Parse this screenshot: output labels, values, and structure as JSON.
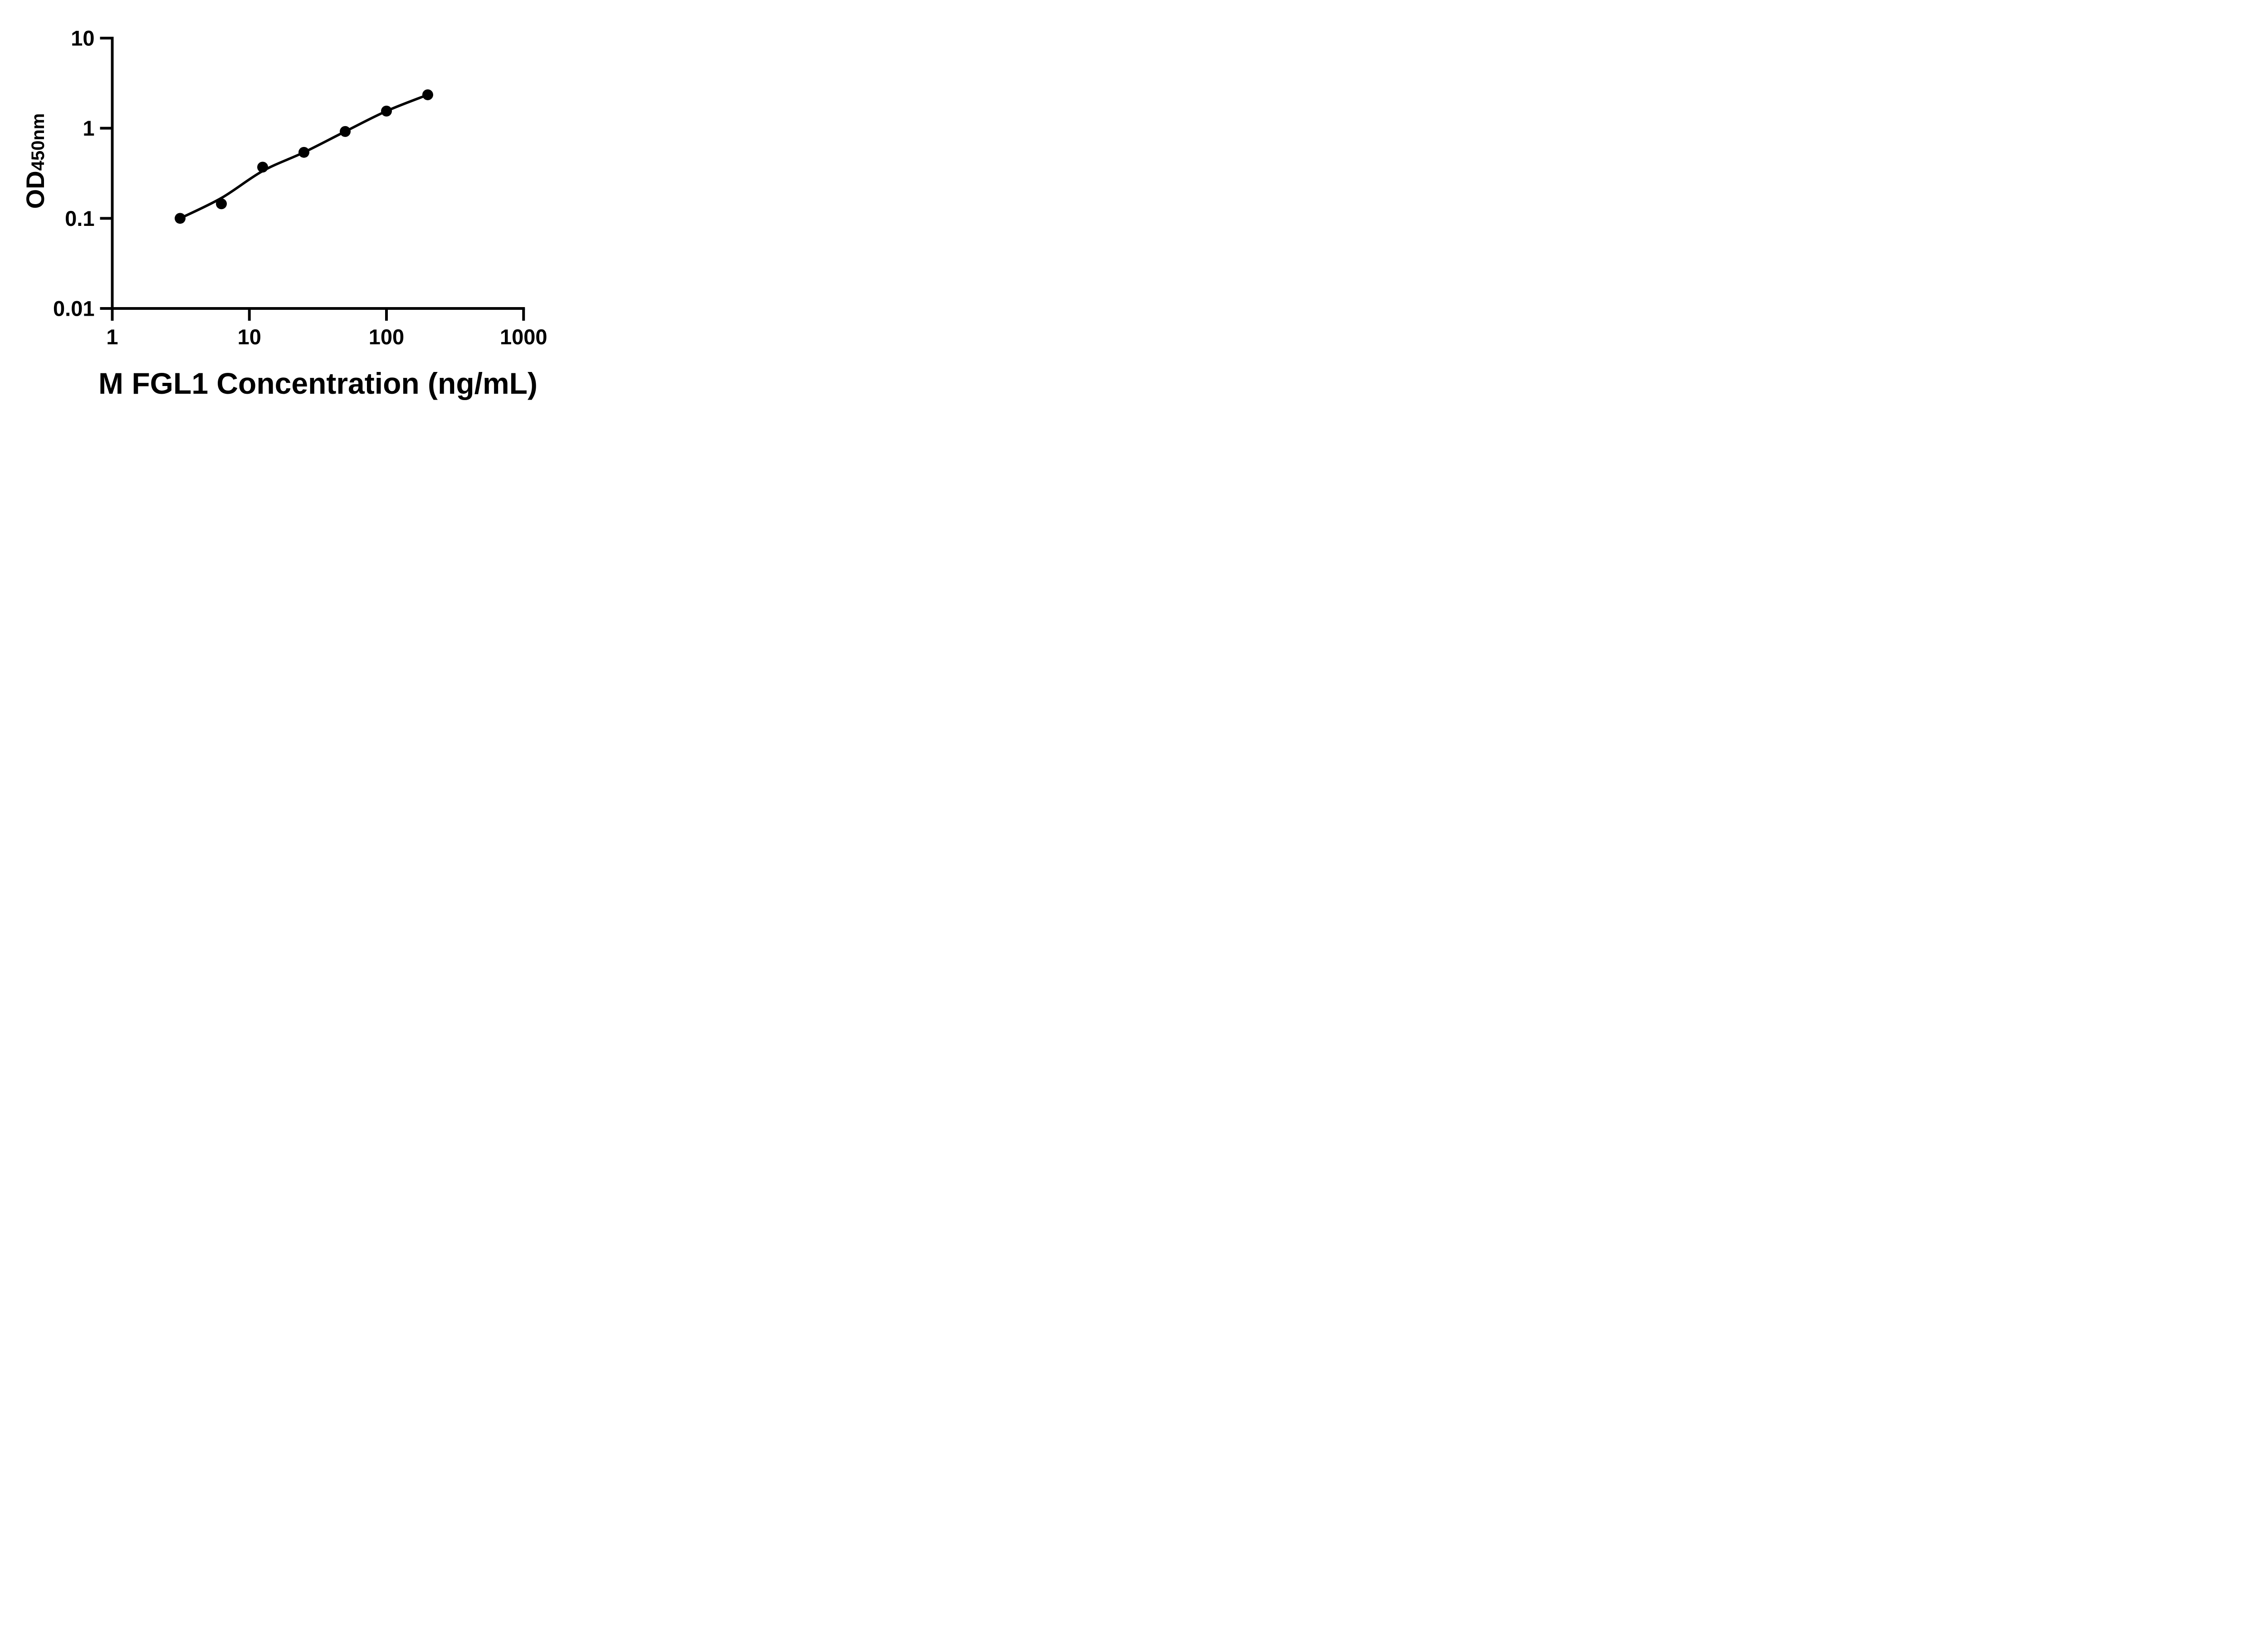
{
  "figure": {
    "background": "#ffffff",
    "ink_color": "#000000"
  },
  "chart_data": {
    "type": "scatter",
    "title": "",
    "xlabel": "M FGL1 Concentration (ng/mL)",
    "ylabel_main": "OD",
    "ylabel_sub": "450nm",
    "x_scale": "log10",
    "y_scale": "log10",
    "xlim": [
      1,
      1000
    ],
    "ylim": [
      0.01,
      10
    ],
    "x_ticks": [
      1,
      10,
      100,
      1000
    ],
    "x_tick_labels": [
      "1",
      "10",
      "100",
      "1000"
    ],
    "y_ticks": [
      10,
      1,
      0.1,
      0.01
    ],
    "y_tick_labels": [
      "10",
      "1",
      "0.1",
      "0.01"
    ],
    "grid": false,
    "legend": null,
    "marker_color": "#000000",
    "line_color": "#000000",
    "series": [
      {
        "name": "standard-points",
        "kind": "scatter",
        "marker": "circle",
        "points": [
          {
            "x": 3.125,
            "y": 0.1
          },
          {
            "x": 6.25,
            "y": 0.145
          },
          {
            "x": 12.5,
            "y": 0.37
          },
          {
            "x": 25,
            "y": 0.54
          },
          {
            "x": 50,
            "y": 0.92
          },
          {
            "x": 100,
            "y": 1.55
          },
          {
            "x": 200,
            "y": 2.35
          }
        ]
      },
      {
        "name": "fit-curve",
        "kind": "line",
        "points": [
          {
            "x": 3.125,
            "y": 0.1
          },
          {
            "x": 6.25,
            "y": 0.168
          },
          {
            "x": 12.5,
            "y": 0.335
          },
          {
            "x": 25,
            "y": 0.54
          },
          {
            "x": 50,
            "y": 0.92
          },
          {
            "x": 100,
            "y": 1.55
          },
          {
            "x": 200,
            "y": 2.35
          }
        ]
      }
    ]
  }
}
